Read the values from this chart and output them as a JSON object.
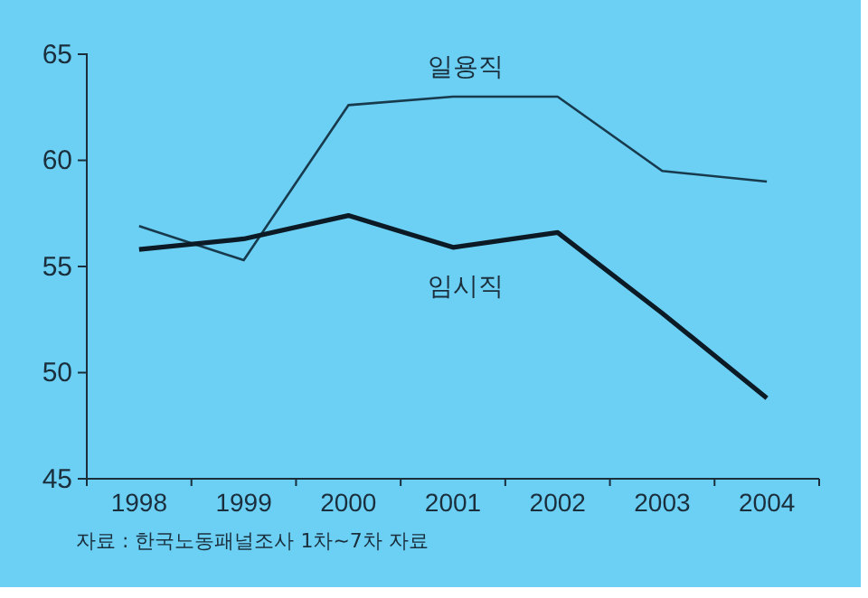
{
  "chart_data": {
    "type": "line",
    "categories": [
      "1998",
      "1999",
      "2000",
      "2001",
      "2002",
      "2003",
      "2004"
    ],
    "series": [
      {
        "name": "일용직",
        "color": "#173a4c",
        "values": [
          56.9,
          55.3,
          62.6,
          63.0,
          63.0,
          59.5,
          59.0
        ]
      },
      {
        "name": "임시직",
        "color": "#0b1a24",
        "values": [
          55.8,
          56.3,
          57.4,
          55.9,
          56.6,
          52.8,
          48.8
        ]
      }
    ],
    "ylim": [
      45,
      65
    ],
    "yticks": [
      45,
      50,
      55,
      60,
      65
    ],
    "grid": false,
    "legend": false,
    "marker": "none",
    "line_style": "solid",
    "annotations": [
      "자료 : 한국노동패널조사 1차~7차 자료"
    ]
  }
}
